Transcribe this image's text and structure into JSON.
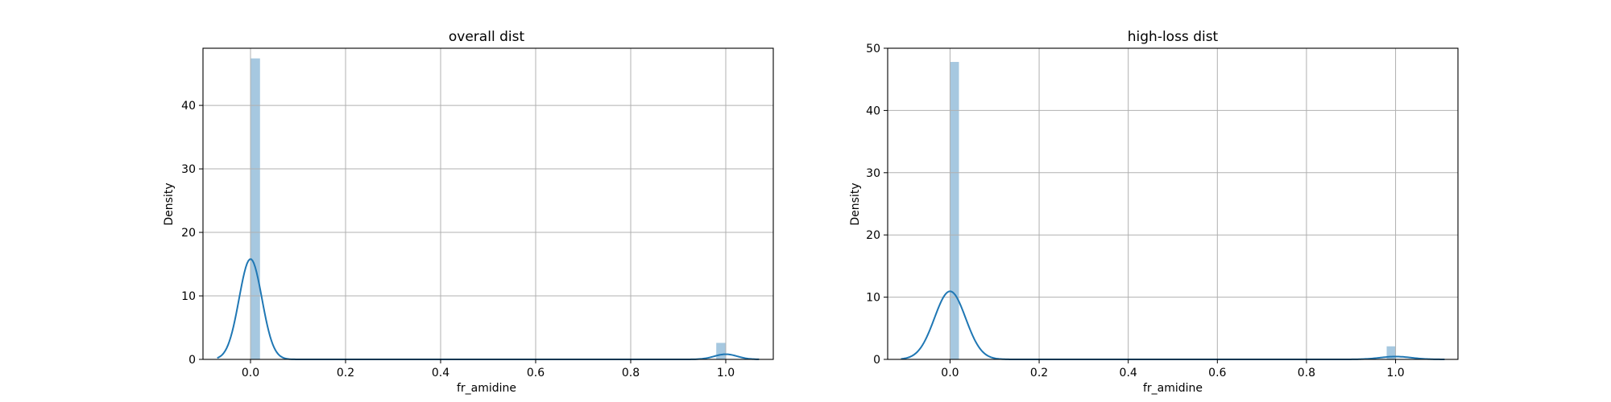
{
  "chart_data": [
    {
      "type": "histogram+kde",
      "title": "overall dist",
      "xlabel": "fr_amidine",
      "ylabel": "Density",
      "xlim": [
        -0.1,
        1.1
      ],
      "ylim": [
        0,
        49
      ],
      "xticks": [
        0.0,
        0.2,
        0.4,
        0.6,
        0.8,
        1.0
      ],
      "xtick_labels": [
        "0.0",
        "0.2",
        "0.4",
        "0.6",
        "0.8",
        "1.0"
      ],
      "yticks": [
        0,
        10,
        20,
        30,
        40
      ],
      "ytick_labels": [
        "0",
        "10",
        "20",
        "30",
        "40"
      ],
      "grid": true,
      "bars": [
        {
          "x0": 0.0,
          "x1": 0.02,
          "density": 47.4
        },
        {
          "x0": 0.98,
          "x1": 1.0,
          "density": 2.6
        }
      ],
      "kde": {
        "color": "#1f77b4",
        "x_range": [
          -0.07,
          1.07
        ],
        "components": [
          {
            "mean": 0.0,
            "sd": 0.024,
            "weight": 0.951
          },
          {
            "mean": 1.0,
            "sd": 0.024,
            "weight": 0.049
          }
        ]
      },
      "bar_color": "#a6c8e0"
    },
    {
      "type": "histogram+kde",
      "title": "high-loss dist",
      "xlabel": "fr_amidine",
      "ylabel": "Density",
      "xlim": [
        -0.14,
        1.14
      ],
      "ylim": [
        0,
        50
      ],
      "xticks": [
        0.0,
        0.2,
        0.4,
        0.6,
        0.8,
        1.0
      ],
      "xtick_labels": [
        "0.0",
        "0.2",
        "0.4",
        "0.6",
        "0.8",
        "1.0"
      ],
      "yticks": [
        0,
        10,
        20,
        30,
        40,
        50
      ],
      "ytick_labels": [
        "0",
        "10",
        "20",
        "30",
        "40",
        "50"
      ],
      "grid": true,
      "bars": [
        {
          "x0": 0.0,
          "x1": 0.02,
          "density": 47.8
        },
        {
          "x0": 0.98,
          "x1": 1.0,
          "density": 2.1
        }
      ],
      "kde": {
        "color": "#1f77b4",
        "x_range": [
          -0.11,
          1.11
        ],
        "components": [
          {
            "mean": 0.0,
            "sd": 0.035,
            "weight": 0.96
          },
          {
            "mean": 1.0,
            "sd": 0.035,
            "weight": 0.04
          }
        ]
      },
      "bar_color": "#a6c8e0"
    }
  ]
}
